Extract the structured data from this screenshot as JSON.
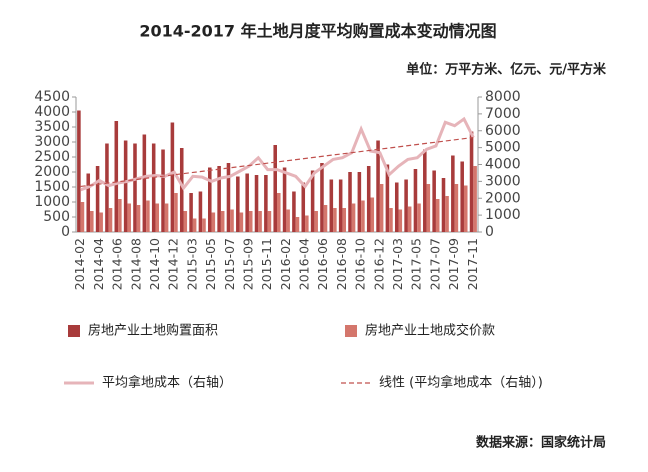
{
  "chart_data": {
    "type": "bar-line",
    "title": "2014-2017 年土地月度平均购置成本变动情况图",
    "units": "单位：万平方米、亿元、元/平方米",
    "source": "数据来源：国家统计局",
    "categories": [
      "2014-02",
      null,
      "2014-04",
      null,
      "2014-06",
      null,
      "2014-08",
      null,
      "2014-10",
      null,
      "2014-12",
      null,
      "2015-03",
      null,
      "2015-05",
      null,
      "2015-07",
      null,
      "2015-09",
      null,
      "2015-11",
      null,
      "2016-02",
      null,
      "2016-04",
      null,
      "2016-06",
      null,
      "2016-08",
      null,
      "2016-10",
      null,
      "2016-12",
      null,
      "2017-03",
      null,
      "2017-05",
      null,
      "2017-07",
      null,
      "2017-09",
      null,
      "2017-11"
    ],
    "ylim": [
      0,
      4500
    ],
    "yticks": [
      0,
      500,
      1000,
      1500,
      2000,
      2500,
      3000,
      3500,
      4000,
      4500
    ],
    "y2lim": [
      0,
      8000
    ],
    "y2ticks": [
      0,
      1000,
      2000,
      3000,
      4000,
      5000,
      6000,
      7000,
      8000
    ],
    "series": [
      {
        "name": "房地产业土地购置面积",
        "color": "#a83b3b",
        "kind": "bar",
        "values": [
          4050,
          1950,
          2200,
          2950,
          3700,
          3050,
          2950,
          3250,
          2950,
          2750,
          3650,
          2800,
          1300,
          1350,
          2150,
          2200,
          2300,
          1850,
          1950,
          1900,
          1900,
          2900,
          2150,
          1350,
          1650,
          2050,
          2300,
          1750,
          1750,
          2000,
          2000,
          2200,
          3050,
          2250,
          1650,
          1750,
          2100,
          2750,
          2050,
          1800,
          2550,
          2350,
          3350
        ]
      },
      {
        "name": "房地产业土地成交价款",
        "color": "#d4766c",
        "kind": "bar",
        "values": [
          1000,
          700,
          650,
          800,
          1100,
          950,
          900,
          1050,
          950,
          950,
          1300,
          700,
          450,
          450,
          650,
          700,
          750,
          650,
          700,
          700,
          700,
          1300,
          750,
          500,
          550,
          700,
          900,
          800,
          800,
          950,
          1050,
          1150,
          1600,
          800,
          750,
          850,
          950,
          1600,
          1100,
          1200,
          1600,
          1550,
          2200
        ]
      },
      {
        "name": "平均拿地成本（右轴）",
        "color": "#e6b4b9",
        "kind": "line",
        "axis": "y2",
        "values": [
          2500,
          2700,
          3050,
          2750,
          2900,
          3000,
          3150,
          3300,
          3350,
          3300,
          3550,
          2600,
          3300,
          3250,
          3000,
          3200,
          3300,
          3600,
          3900,
          4400,
          3700,
          3700,
          3500,
          3300,
          2700,
          3500,
          3900,
          4300,
          4400,
          4700,
          6100,
          4800,
          4700,
          3400,
          3900,
          4300,
          4400,
          4900,
          5100,
          6500,
          6300,
          6700,
          5600
        ]
      }
    ],
    "trend": {
      "name": "线性 (平均拿地成本（右轴）)",
      "color": "#c0504d",
      "axis": "y2",
      "values": [
        2700,
        5600
      ]
    }
  }
}
